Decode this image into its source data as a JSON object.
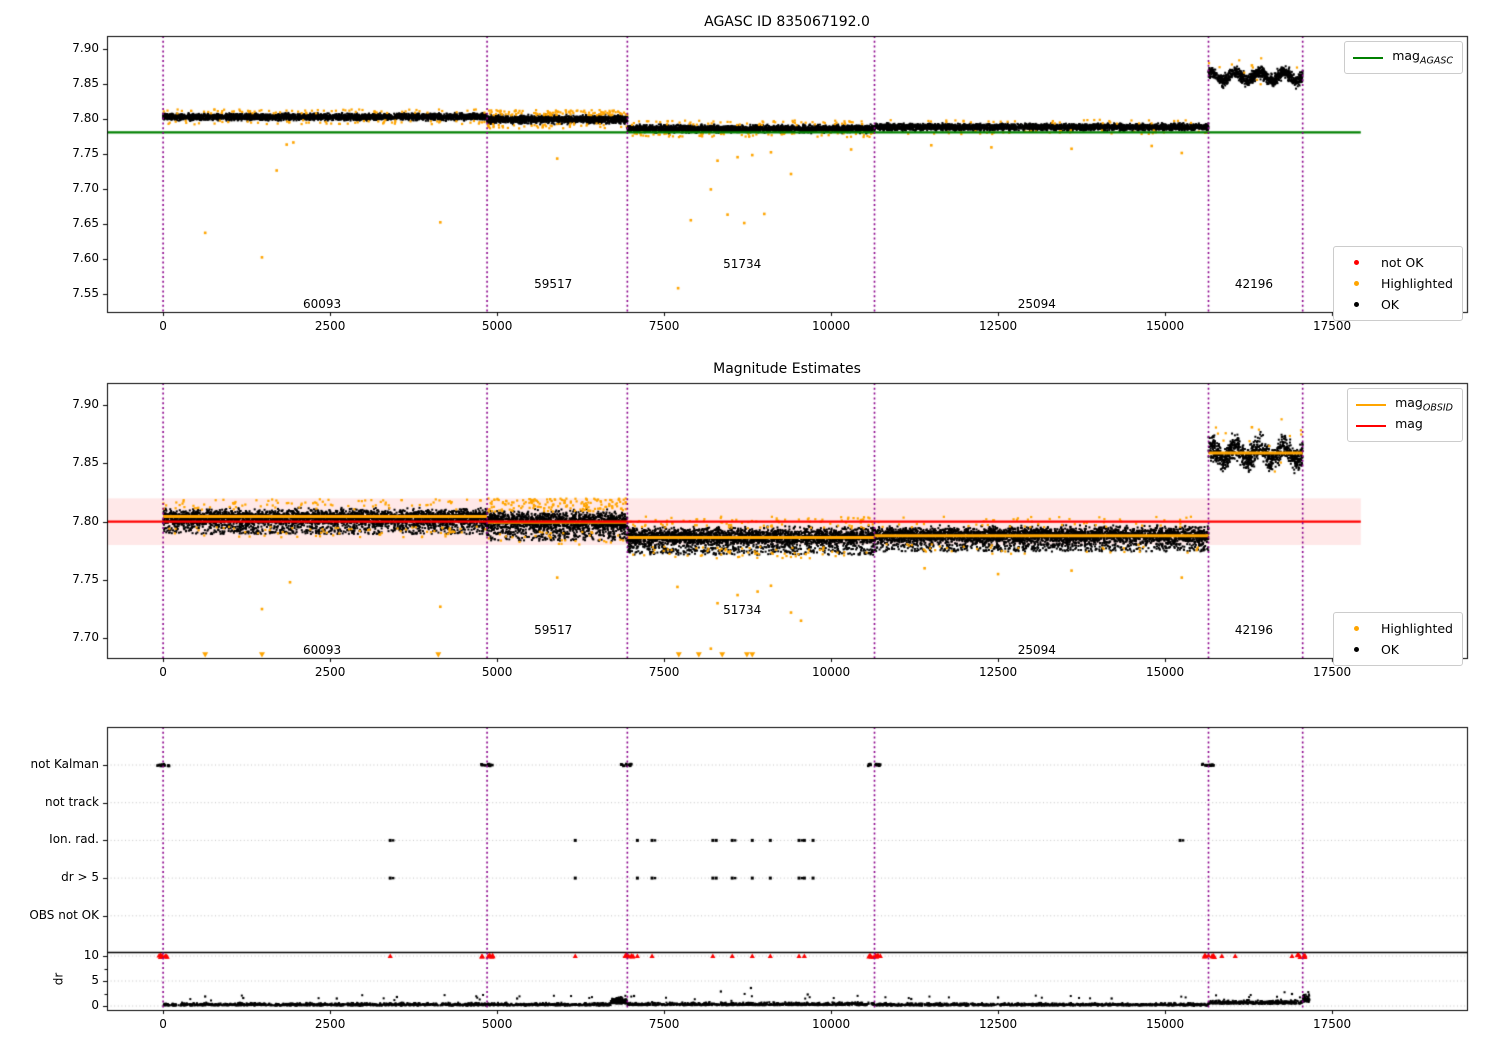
{
  "colors": {
    "green": "#008000",
    "orange": "#ffa500",
    "red": "#ff0000",
    "black": "#000000",
    "purple": "#8b008b",
    "band_pink": "rgba(255,0,0,0.09)",
    "grid": "#c4c4c4"
  },
  "chart_data": [
    {
      "type": "scatter",
      "title": "AGASC ID 835067192.0",
      "xlim": [
        -840,
        19520
      ],
      "ylim": [
        7.525,
        7.919
      ],
      "xticks": [
        0,
        2500,
        5000,
        7500,
        10000,
        12500,
        15000,
        17500
      ],
      "yticks": [
        "7.90",
        "7.85",
        "7.80",
        "7.75",
        "7.70",
        "7.65",
        "7.60",
        "7.55"
      ],
      "agasc_mag": 7.7815,
      "ref_line_x_end": 17930,
      "obsid_boundaries": [
        0,
        4850,
        6950,
        10650,
        15650,
        17060
      ],
      "segments": [
        {
          "obsid": "60093",
          "x0": 0,
          "x1": 4850,
          "mag": 7.8035,
          "spread": 0.004,
          "n": 3000,
          "label_x": 2380,
          "label_dy": -8
        },
        {
          "obsid": "59517",
          "x0": 4850,
          "x1": 6950,
          "mag": 7.8,
          "spread": 0.005,
          "n": 1300,
          "label_x": 5840,
          "label_dy": -28
        },
        {
          "obsid": "51734",
          "x0": 6950,
          "x1": 10650,
          "mag": 7.7865,
          "spread": 0.0045,
          "n": 2200,
          "label_x": 8670,
          "label_dy": -48
        },
        {
          "obsid": "25094",
          "x0": 10650,
          "x1": 15650,
          "mag": 7.789,
          "spread": 0.004,
          "n": 2900,
          "label_x": 13080,
          "label_dy": -8
        },
        {
          "obsid": "42196",
          "x0": 15650,
          "x1": 17060,
          "mag": 7.8615,
          "spread": 0.008,
          "n": 800,
          "label_x": 16330,
          "label_dy": -28,
          "wavy": true
        }
      ],
      "highlighted_outliers": [
        [
          630,
          7.638
        ],
        [
          1480,
          7.603
        ],
        [
          1700,
          7.727
        ],
        [
          1850,
          7.764
        ],
        [
          1950,
          7.767
        ],
        [
          4150,
          7.653
        ],
        [
          5900,
          7.744
        ],
        [
          7710,
          7.559
        ],
        [
          7900,
          7.656
        ],
        [
          8200,
          7.7
        ],
        [
          8300,
          7.741
        ],
        [
          8450,
          7.664
        ],
        [
          8600,
          7.746
        ],
        [
          8700,
          7.652
        ],
        [
          8820,
          7.749
        ],
        [
          9000,
          7.665
        ],
        [
          9100,
          7.753
        ],
        [
          9400,
          7.722
        ],
        [
          10300,
          7.757
        ],
        [
          11500,
          7.763
        ],
        [
          12400,
          7.76
        ],
        [
          13600,
          7.758
        ],
        [
          14800,
          7.762
        ],
        [
          15250,
          7.752
        ],
        [
          16300,
          7.877
        ]
      ],
      "legend_line": {
        "prefix": "mag",
        "sub": "AGASC"
      },
      "legend_markers": [
        {
          "label": "not OK",
          "color_key": "red"
        },
        {
          "label": "Highlighted",
          "color_key": "orange"
        },
        {
          "label": "OK",
          "color_key": "black"
        }
      ]
    },
    {
      "type": "scatter",
      "title": "Magnitude Estimates",
      "xlim": [
        -840,
        19520
      ],
      "ylim": [
        7.683,
        7.919
      ],
      "xticks": [
        0,
        2500,
        5000,
        7500,
        10000,
        12500,
        15000,
        17500
      ],
      "yticks": [
        "7.90",
        "7.85",
        "7.80",
        "7.75",
        "7.70"
      ],
      "mag": 7.8,
      "mag_band": [
        7.78,
        7.82
      ],
      "ref_line_x_end": 17930,
      "obsid_boundaries": [
        0,
        4850,
        6950,
        10650,
        15650,
        17060
      ],
      "segments": [
        {
          "obsid": "60093",
          "x0": 0,
          "x1": 4850,
          "obsid_mag": 7.8045,
          "cloud_mag": 7.803,
          "spread": 0.0062,
          "n": 3200,
          "label_x": 2380,
          "label_dy": -8
        },
        {
          "obsid": "59517",
          "x0": 4850,
          "x1": 6950,
          "obsid_mag": 7.7995,
          "cloud_mag": 7.8,
          "spread": 0.0075,
          "n": 1400,
          "label_x": 5840,
          "label_dy": -28
        },
        {
          "obsid": "51734",
          "x0": 6950,
          "x1": 10650,
          "obsid_mag": 7.7865,
          "cloud_mag": 7.7865,
          "spread": 0.0068,
          "n": 2400,
          "label_x": 8670,
          "label_dy": -48
        },
        {
          "obsid": "25094",
          "x0": 10650,
          "x1": 15650,
          "obsid_mag": 7.788,
          "cloud_mag": 7.788,
          "spread": 0.0062,
          "n": 3100,
          "label_x": 13080,
          "label_dy": -8
        },
        {
          "obsid": "42196",
          "x0": 15650,
          "x1": 17060,
          "obsid_mag": 7.859,
          "cloud_mag": 7.859,
          "spread": 0.009,
          "n": 850,
          "label_x": 16330,
          "label_dy": -28,
          "wavy": true
        }
      ],
      "highlighted_outliers": [
        [
          1480,
          7.725
        ],
        [
          1900,
          7.748
        ],
        [
          4150,
          7.727
        ],
        [
          5900,
          7.752
        ],
        [
          7700,
          7.744
        ],
        [
          8200,
          7.691
        ],
        [
          8300,
          7.73
        ],
        [
          8600,
          7.737
        ],
        [
          8900,
          7.74
        ],
        [
          9100,
          7.745
        ],
        [
          9400,
          7.722
        ],
        [
          9550,
          7.715
        ],
        [
          11400,
          7.76
        ],
        [
          12500,
          7.755
        ],
        [
          13600,
          7.758
        ],
        [
          15250,
          7.752
        ],
        [
          16300,
          7.881
        ]
      ],
      "clipped_low_x": [
        630,
        1480,
        4120,
        7720,
        8020,
        8370,
        8740,
        8820
      ],
      "legend_lines": [
        {
          "prefix": "mag",
          "sub": "OBSID",
          "color_key": "orange"
        },
        {
          "prefix": "mag",
          "sub": "",
          "color_key": "red"
        }
      ],
      "legend_markers": [
        {
          "label": "Highlighted",
          "color_key": "orange"
        },
        {
          "label": "OK",
          "color_key": "black"
        }
      ]
    },
    {
      "type": "scatter",
      "title": "",
      "xlim": [
        -840,
        19520
      ],
      "xticks": [
        0,
        2500,
        5000,
        7500,
        10000,
        12500,
        15000,
        17500
      ],
      "rows": [
        "not Kalman",
        "not track",
        "Ion. rad.",
        "dr > 5",
        "OBS not OK"
      ],
      "dr_ticks": [
        "10",
        "5",
        "0"
      ],
      "ylabel": "dr",
      "dr_cap_line": 10.5,
      "obsid_boundaries": [
        0,
        4850,
        6950,
        10650,
        15650,
        17060
      ],
      "flags": {
        "not_kalman_clusters": [
          0,
          4850,
          6950,
          10650,
          15650
        ],
        "not_track": [],
        "ion_rad": [
          3400,
          6170,
          7100,
          7320,
          8230,
          8280,
          8520,
          8820,
          9090,
          9520,
          9600,
          9730,
          15225
        ],
        "dr_gt5": [
          3400,
          6170,
          7100,
          7320,
          8230,
          8280,
          8520,
          8820,
          9090,
          9520,
          9600,
          9730
        ],
        "obs_not_ok": []
      },
      "dr_capped_clusters": [
        0,
        4850,
        6950,
        10650,
        15650,
        17060
      ],
      "dr_capped_singles": [
        3400,
        6170,
        7100,
        7320,
        8230,
        8520,
        8820,
        9090,
        9520,
        9600,
        15850,
        16050,
        16900
      ],
      "dr_segments": [
        {
          "x0": 0,
          "x1": 4850,
          "n": 1000,
          "base": 0.1,
          "amp": 0.5
        },
        {
          "x0": 4850,
          "x1": 6700,
          "n": 380,
          "base": 0.1,
          "amp": 0.5
        },
        {
          "x0": 6700,
          "x1": 6950,
          "n": 170,
          "base": 0.5,
          "amp": 1.1
        },
        {
          "x0": 6950,
          "x1": 10650,
          "n": 820,
          "base": 0.15,
          "amp": 0.55
        },
        {
          "x0": 10650,
          "x1": 15650,
          "n": 1050,
          "base": 0.1,
          "amp": 0.45
        },
        {
          "x0": 15650,
          "x1": 17060,
          "n": 360,
          "base": 0.45,
          "amp": 0.7
        },
        {
          "x0": 17060,
          "x1": 17160,
          "n": 45,
          "base": 0.8,
          "amp": 1.4
        }
      ],
      "dr_singles": [
        [
          8800,
          3.6
        ],
        [
          8350,
          2.9
        ],
        [
          9650,
          2.3
        ],
        [
          7050,
          2.0
        ],
        [
          3500,
          1.8
        ],
        [
          1200,
          1.6
        ],
        [
          2600,
          1.5
        ],
        [
          5300,
          1.5
        ],
        [
          12500,
          1.7
        ],
        [
          14200,
          1.5
        ],
        [
          16900,
          2.4
        ],
        [
          17080,
          2.2
        ],
        [
          11200,
          1.4
        ],
        [
          630,
          1.9
        ]
      ]
    }
  ]
}
